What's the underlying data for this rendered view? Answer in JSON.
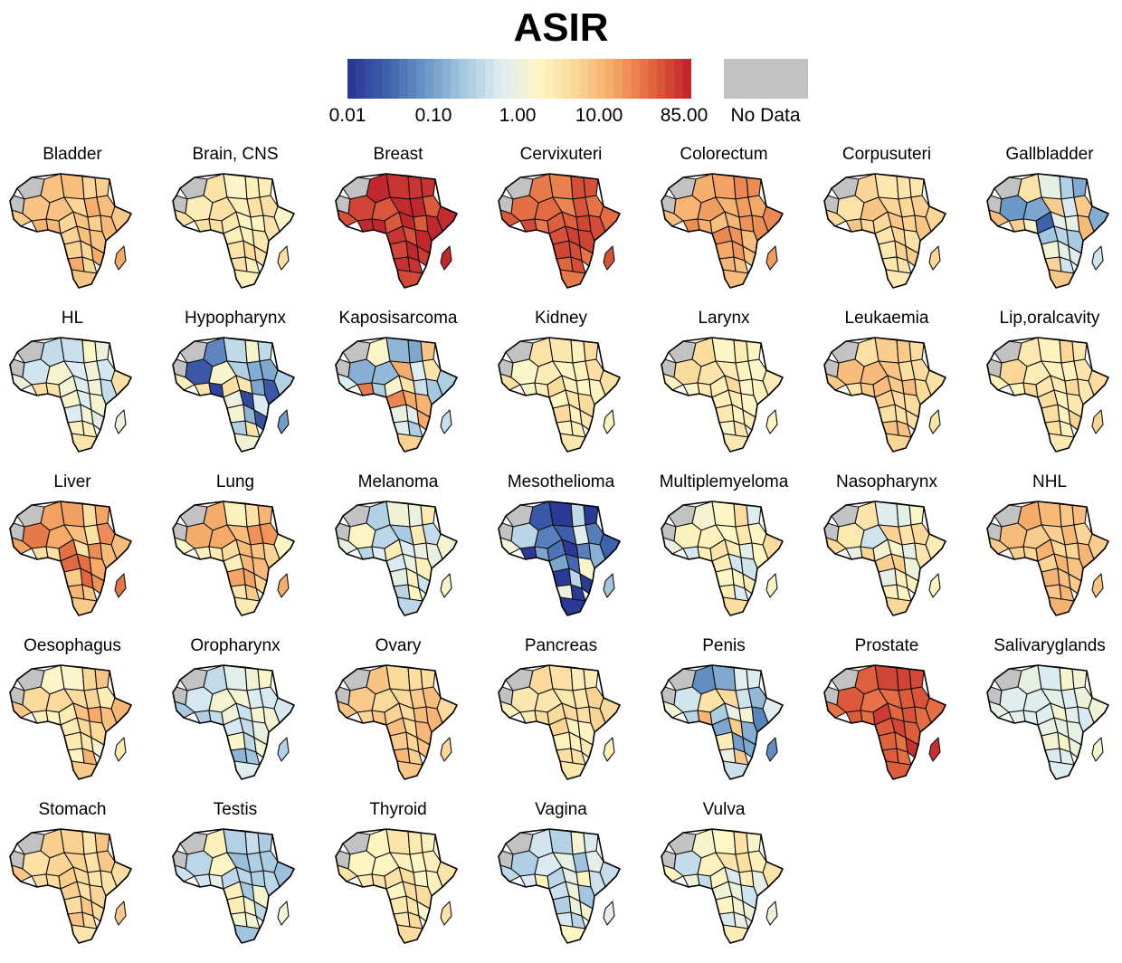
{
  "title": "ASIR",
  "legend": {
    "ticks": [
      "0.01",
      "0.10",
      "1.00",
      "10.00",
      "85.00"
    ],
    "no_data_label": "No Data",
    "colors": [
      "#2b3a96",
      "#3f63ad",
      "#6b97c8",
      "#a5c8e0",
      "#dcecf2",
      "#fdf6c4",
      "#fad898",
      "#f5a968",
      "#e3693f",
      "#c2272e"
    ],
    "no_data_color": "#c2c2c2"
  },
  "panels": [
    {
      "name": "Bladder",
      "level": 0.72,
      "variation": "low"
    },
    {
      "name": "Brain, CNS",
      "level": 0.6,
      "variation": "low"
    },
    {
      "name": "Breast",
      "level": 0.97,
      "variation": "low"
    },
    {
      "name": "Cervixuteri",
      "level": 0.9,
      "variation": "low"
    },
    {
      "name": "Colorectum",
      "level": 0.78,
      "variation": "low"
    },
    {
      "name": "Corpusuteri",
      "level": 0.66,
      "variation": "low"
    },
    {
      "name": "Gallbladder",
      "level": 0.42,
      "variation": "high"
    },
    {
      "name": "HL",
      "level": 0.52,
      "variation": "medium"
    },
    {
      "name": "Hypopharynx",
      "level": 0.33,
      "variation": "high"
    },
    {
      "name": "Kaposisarcoma",
      "level": 0.55,
      "variation": "high"
    },
    {
      "name": "Kidney",
      "level": 0.6,
      "variation": "low"
    },
    {
      "name": "Larynx",
      "level": 0.6,
      "variation": "low"
    },
    {
      "name": "Leukaemia",
      "level": 0.68,
      "variation": "low"
    },
    {
      "name": "Lip,oralcavity",
      "level": 0.62,
      "variation": "low"
    },
    {
      "name": "Liver",
      "level": 0.76,
      "variation": "medium"
    },
    {
      "name": "Lung",
      "level": 0.68,
      "variation": "medium"
    },
    {
      "name": "Melanoma",
      "level": 0.48,
      "variation": "medium"
    },
    {
      "name": "Mesothelioma",
      "level": 0.22,
      "variation": "high"
    },
    {
      "name": "Multiplemyeloma",
      "level": 0.52,
      "variation": "medium"
    },
    {
      "name": "Nasopharynx",
      "level": 0.56,
      "variation": "medium"
    },
    {
      "name": "NHL",
      "level": 0.72,
      "variation": "low"
    },
    {
      "name": "Oesophagus",
      "level": 0.64,
      "variation": "medium"
    },
    {
      "name": "Oropharynx",
      "level": 0.42,
      "variation": "medium"
    },
    {
      "name": "Ovary",
      "level": 0.7,
      "variation": "low"
    },
    {
      "name": "Pancreas",
      "level": 0.62,
      "variation": "low"
    },
    {
      "name": "Penis",
      "level": 0.48,
      "variation": "high"
    },
    {
      "name": "Prostate",
      "level": 0.93,
      "variation": "low"
    },
    {
      "name": "Salivaryglands",
      "level": 0.48,
      "variation": "low"
    },
    {
      "name": "Stomach",
      "level": 0.66,
      "variation": "low"
    },
    {
      "name": "Testis",
      "level": 0.45,
      "variation": "medium"
    },
    {
      "name": "Thyroid",
      "level": 0.6,
      "variation": "low"
    },
    {
      "name": "Vagina",
      "level": 0.45,
      "variation": "medium"
    },
    {
      "name": "Vulva",
      "level": 0.5,
      "variation": "medium"
    }
  ]
}
